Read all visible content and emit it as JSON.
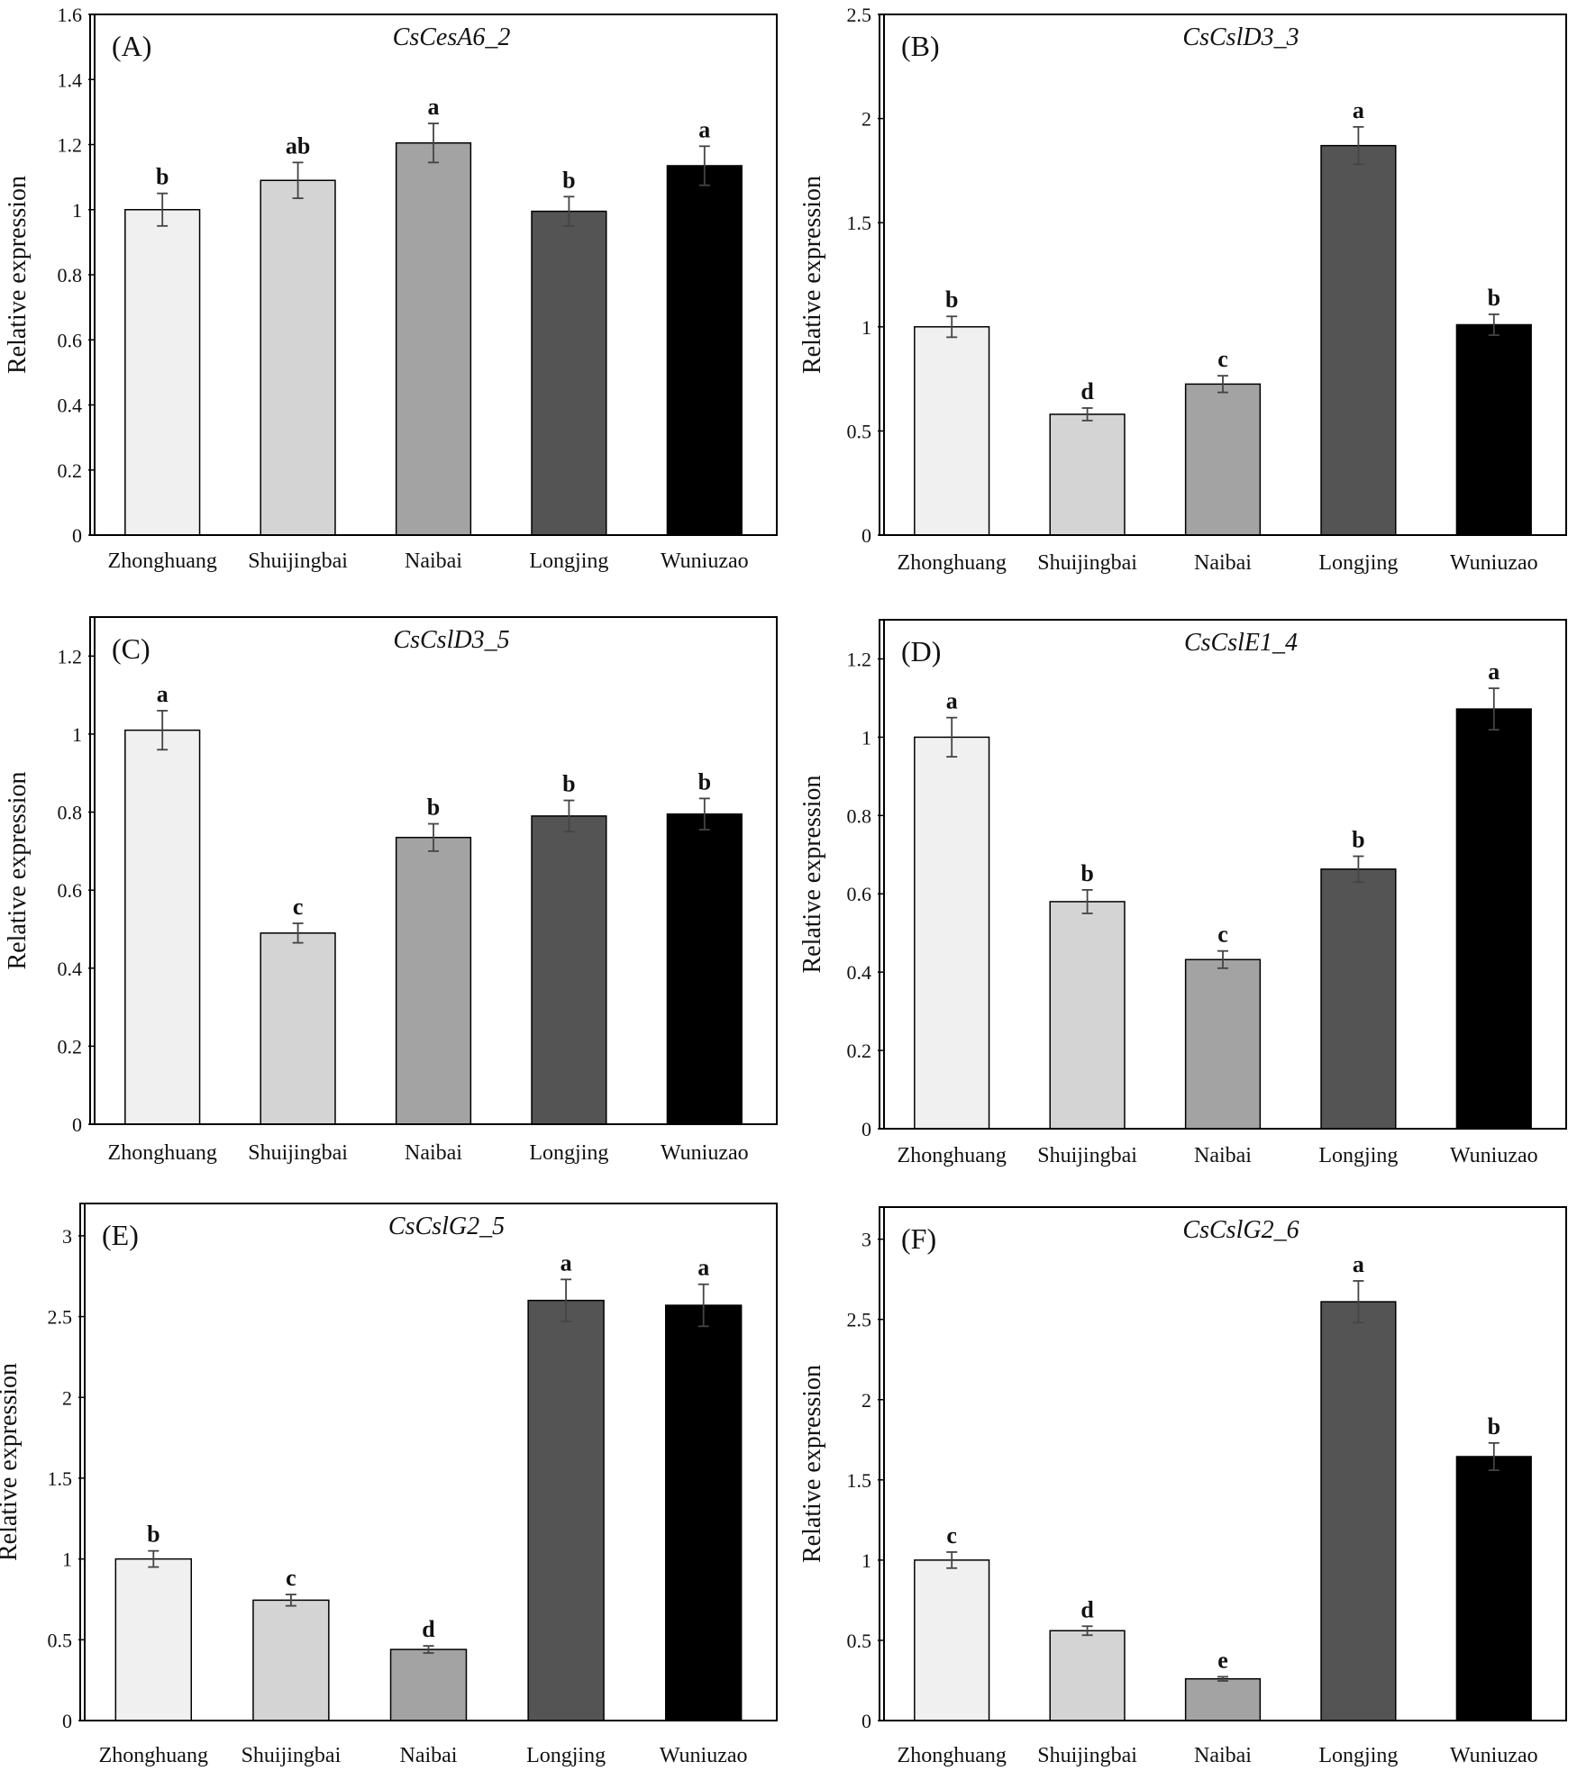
{
  "chart_data": [
    {
      "type": "bar",
      "panel": "(A)",
      "title": "CsCesA6_2",
      "ylabel": "Relative expression",
      "xlabel": "",
      "categories": [
        "Zhonghuang",
        "Shuijingbai",
        "Naibai",
        "Longjing",
        "Wuniuzao"
      ],
      "values": [
        1.0,
        1.09,
        1.205,
        0.995,
        1.135
      ],
      "errors": [
        0.05,
        0.055,
        0.06,
        0.045,
        0.06
      ],
      "significance": [
        "b",
        "ab",
        "a",
        "b",
        "a"
      ],
      "ylim": [
        0,
        1.6
      ],
      "yticks": [
        0,
        0.2,
        0.4,
        0.6,
        0.8,
        1,
        1.2,
        1.4,
        1.6
      ],
      "ytick_labels": [
        "0",
        "0.2",
        "0.4",
        "0.6",
        "0.8",
        "1",
        "1.2",
        "1.4",
        "1.6"
      ],
      "bar_colors": [
        "#f0f0f0",
        "#d4d4d4",
        "#a3a3a3",
        "#545454",
        "#000000"
      ]
    },
    {
      "type": "bar",
      "panel": "(B)",
      "title": "CsCslD3_3",
      "ylabel": "Relative expression",
      "xlabel": "",
      "categories": [
        "Zhonghuang",
        "Shuijingbai",
        "Naibai",
        "Longjing",
        "Wuniuzao"
      ],
      "values": [
        1.0,
        0.58,
        0.725,
        1.87,
        1.01
      ],
      "errors": [
        0.05,
        0.03,
        0.04,
        0.09,
        0.05
      ],
      "significance": [
        "b",
        "d",
        "c",
        "a",
        "b"
      ],
      "ylim": [
        0,
        2.5
      ],
      "yticks": [
        0,
        0.5,
        1,
        1.5,
        2,
        2.5
      ],
      "ytick_labels": [
        "0",
        "0.5",
        "1",
        "1.5",
        "2",
        "2.5"
      ],
      "bar_colors": [
        "#f0f0f0",
        "#d4d4d4",
        "#a3a3a3",
        "#545454",
        "#000000"
      ]
    },
    {
      "type": "bar",
      "panel": "(C)",
      "title": "CsCslD3_5",
      "ylabel": "Relative expression",
      "xlabel": "",
      "categories": [
        "Zhonghuang",
        "Shuijingbai",
        "Naibai",
        "Longjing",
        "Wuniuzao"
      ],
      "values": [
        1.01,
        0.49,
        0.735,
        0.79,
        0.795
      ],
      "errors": [
        0.05,
        0.025,
        0.035,
        0.04,
        0.04
      ],
      "significance": [
        "a",
        "c",
        "b",
        "b",
        "b"
      ],
      "ylim": [
        0,
        1.3
      ],
      "yticks": [
        0,
        0.2,
        0.4,
        0.6,
        0.8,
        1,
        1.2
      ],
      "ytick_labels": [
        "0",
        "0.2",
        "0.4",
        "0.6",
        "0.8",
        "1",
        "1.2"
      ],
      "bar_colors": [
        "#f0f0f0",
        "#d4d4d4",
        "#a3a3a3",
        "#545454",
        "#000000"
      ]
    },
    {
      "type": "bar",
      "panel": "(D)",
      "title": "CsCslE1_4",
      "ylabel": "Relative expression",
      "xlabel": "",
      "categories": [
        "Zhonghuang",
        "Shuijingbai",
        "Naibai",
        "Longjing",
        "Wuniuzao"
      ],
      "values": [
        1.0,
        0.58,
        0.432,
        0.663,
        1.072
      ],
      "errors": [
        0.05,
        0.03,
        0.022,
        0.033,
        0.053
      ],
      "significance": [
        "a",
        "b",
        "c",
        "b",
        "a"
      ],
      "ylim": [
        0,
        1.3
      ],
      "yticks": [
        0,
        0.2,
        0.4,
        0.6,
        0.8,
        1,
        1.2
      ],
      "ytick_labels": [
        "0",
        "0.2",
        "0.4",
        "0.6",
        "0.8",
        "1",
        "1.2"
      ],
      "bar_colors": [
        "#f0f0f0",
        "#d4d4d4",
        "#a3a3a3",
        "#545454",
        "#000000"
      ]
    },
    {
      "type": "bar",
      "panel": "(E)",
      "title": "CsCslG2_5",
      "ylabel": "Relative expression",
      "xlabel": "",
      "categories": [
        "Zhonghuang",
        "Shuijingbai",
        "Naibai",
        "Longjing",
        "Wuniuzao"
      ],
      "values": [
        1.0,
        0.745,
        0.44,
        2.6,
        2.57
      ],
      "errors": [
        0.05,
        0.035,
        0.022,
        0.13,
        0.13
      ],
      "significance": [
        "b",
        "c",
        "d",
        "a",
        "a"
      ],
      "ylim": [
        0,
        3.2
      ],
      "yticks": [
        0,
        0.5,
        1,
        1.5,
        2,
        2.5,
        3
      ],
      "ytick_labels": [
        "0",
        "0.5",
        "1",
        "1.5",
        "2",
        "2.5",
        "3"
      ],
      "bar_colors": [
        "#f0f0f0",
        "#d4d4d4",
        "#a3a3a3",
        "#545454",
        "#000000"
      ]
    },
    {
      "type": "bar",
      "panel": "(F)",
      "title": "CsCslG2_6",
      "ylabel": "Relative expression",
      "xlabel": "",
      "categories": [
        "Zhonghuang",
        "Shuijingbai",
        "Naibai",
        "Longjing",
        "Wuniuzao"
      ],
      "values": [
        1.0,
        0.56,
        0.26,
        2.61,
        1.645
      ],
      "errors": [
        0.05,
        0.028,
        0.013,
        0.13,
        0.085
      ],
      "significance": [
        "c",
        "d",
        "e",
        "a",
        "b"
      ],
      "ylim": [
        0,
        3.2
      ],
      "yticks": [
        0,
        0.5,
        1,
        1.5,
        2,
        2.5,
        3
      ],
      "ytick_labels": [
        "0",
        "0.5",
        "1",
        "1.5",
        "2",
        "2.5",
        "3"
      ],
      "bar_colors": [
        "#f0f0f0",
        "#d4d4d4",
        "#a3a3a3",
        "#545454",
        "#000000"
      ]
    }
  ]
}
